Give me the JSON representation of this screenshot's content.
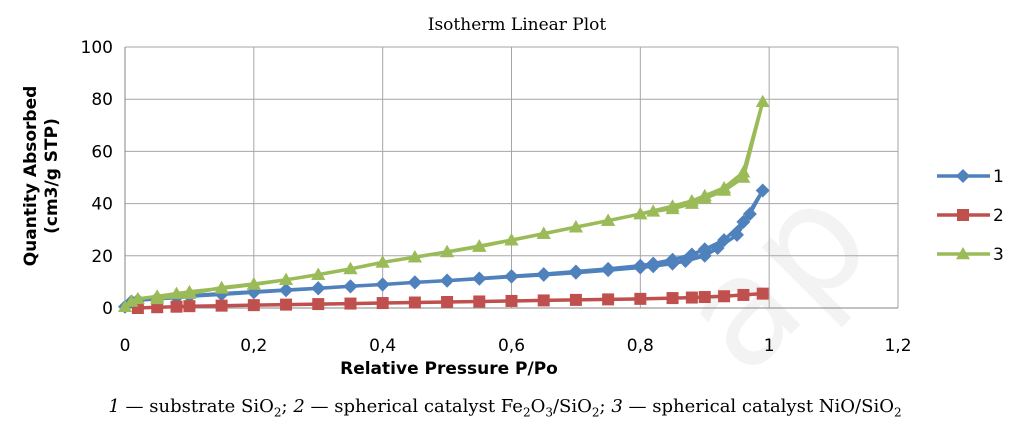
{
  "chart_data": {
    "type": "line",
    "title": "Isotherm Linear Plot",
    "xlabel": "Relative Pressure P/Po",
    "ylabel_lines": [
      "Quantity Absorbed",
      "(cm3/g STP)"
    ],
    "xlim": [
      0,
      1.2
    ],
    "ylim": [
      0,
      100
    ],
    "x_ticks": [
      0,
      0.2,
      0.4,
      0.6,
      0.8,
      1,
      1.2
    ],
    "x_tick_labels": [
      "0",
      "0,2",
      "0,4",
      "0,6",
      "0,8",
      "1",
      "1,2"
    ],
    "y_ticks": [
      0,
      20,
      40,
      60,
      80,
      100
    ],
    "y_tick_labels": [
      "0",
      "20",
      "40",
      "60",
      "80",
      "100"
    ],
    "grid": true,
    "legend_position": "right",
    "series": [
      {
        "name": "1",
        "color": "#4f81bd",
        "marker": "diamond",
        "x": [
          0.0,
          0.01,
          0.02,
          0.05,
          0.08,
          0.1,
          0.15,
          0.2,
          0.25,
          0.3,
          0.35,
          0.4,
          0.45,
          0.5,
          0.55,
          0.6,
          0.65,
          0.7,
          0.75,
          0.8,
          0.82,
          0.85,
          0.88,
          0.9,
          0.93,
          0.96,
          0.99,
          0.97,
          0.95,
          0.92,
          0.9,
          0.87,
          0.85,
          0.82,
          0.8,
          0.75,
          0.7,
          0.65,
          0.6,
          0.55,
          0.5,
          0.45,
          0.4,
          0.35,
          0.3,
          0.25,
          0.2,
          0.15,
          0.1,
          0.05
        ],
        "y": [
          0.5,
          2.5,
          3.0,
          3.5,
          4.0,
          4.5,
          5.2,
          6.0,
          6.8,
          7.5,
          8.3,
          9.0,
          9.8,
          10.5,
          11.3,
          12.2,
          13.0,
          14.0,
          15.0,
          16.2,
          17.0,
          18.5,
          20.5,
          22.5,
          26.0,
          33.0,
          45.0,
          36.0,
          28.0,
          23.0,
          20.0,
          18.0,
          17.0,
          16.0,
          15.5,
          14.5,
          13.5,
          12.7,
          12.0,
          11.2,
          10.5,
          9.8,
          9.0,
          8.3,
          7.6,
          6.9,
          6.2,
          5.5,
          4.7,
          3.8
        ]
      },
      {
        "name": "2",
        "color": "#c0504d",
        "marker": "square",
        "x": [
          0.02,
          0.05,
          0.08,
          0.1,
          0.15,
          0.2,
          0.25,
          0.3,
          0.35,
          0.4,
          0.45,
          0.5,
          0.55,
          0.6,
          0.65,
          0.7,
          0.75,
          0.8,
          0.85,
          0.88,
          0.9,
          0.93,
          0.96,
          0.99
        ],
        "y": [
          0.0,
          0.3,
          0.5,
          0.7,
          0.9,
          1.1,
          1.3,
          1.5,
          1.7,
          1.9,
          2.1,
          2.3,
          2.5,
          2.7,
          2.9,
          3.1,
          3.3,
          3.5,
          3.8,
          4.0,
          4.2,
          4.5,
          5.0,
          5.5
        ]
      },
      {
        "name": "3",
        "color": "#9bbb59",
        "marker": "triangle",
        "x": [
          0.0,
          0.01,
          0.02,
          0.05,
          0.08,
          0.1,
          0.15,
          0.2,
          0.25,
          0.3,
          0.35,
          0.4,
          0.45,
          0.5,
          0.55,
          0.6,
          0.65,
          0.7,
          0.75,
          0.8,
          0.85,
          0.88,
          0.9,
          0.93,
          0.96,
          0.99,
          0.96,
          0.93,
          0.9,
          0.88,
          0.85,
          0.82,
          0.8,
          0.75,
          0.7,
          0.65,
          0.6,
          0.55,
          0.5,
          0.45,
          0.4,
          0.35,
          0.3,
          0.25,
          0.2,
          0.15,
          0.1,
          0.05
        ],
        "y": [
          0.5,
          2.5,
          3.5,
          4.5,
          5.5,
          6.2,
          7.5,
          9.0,
          10.8,
          12.8,
          15.0,
          17.5,
          19.5,
          21.5,
          23.5,
          26.0,
          28.5,
          31.0,
          33.5,
          36.0,
          39.0,
          41.0,
          43.0,
          46.0,
          52.0,
          79.0,
          50.0,
          45.0,
          42.0,
          40.0,
          38.0,
          37.0,
          36.0,
          33.5,
          31.0,
          28.5,
          26.0,
          23.7,
          21.5,
          19.5,
          17.5,
          15.0,
          12.8,
          10.8,
          9.2,
          7.8,
          5.5,
          3.5
        ]
      }
    ]
  },
  "caption": {
    "parts": [
      {
        "num": "1",
        "text": " — substrate SiO",
        "sub": "2",
        "tail": "; "
      },
      {
        "num": "2",
        "text": " — spherical catalyst Fe",
        "sub": "2",
        "tail": "O"
      },
      {
        "num": "",
        "text": "",
        "sub": "3",
        "tail": "/SiO"
      },
      {
        "num": "",
        "text": "",
        "sub": "2",
        "tail": "; "
      },
      {
        "num": "3",
        "text": " — spherical catalyst NiO/SiO",
        "sub": "2",
        "tail": ""
      }
    ]
  }
}
